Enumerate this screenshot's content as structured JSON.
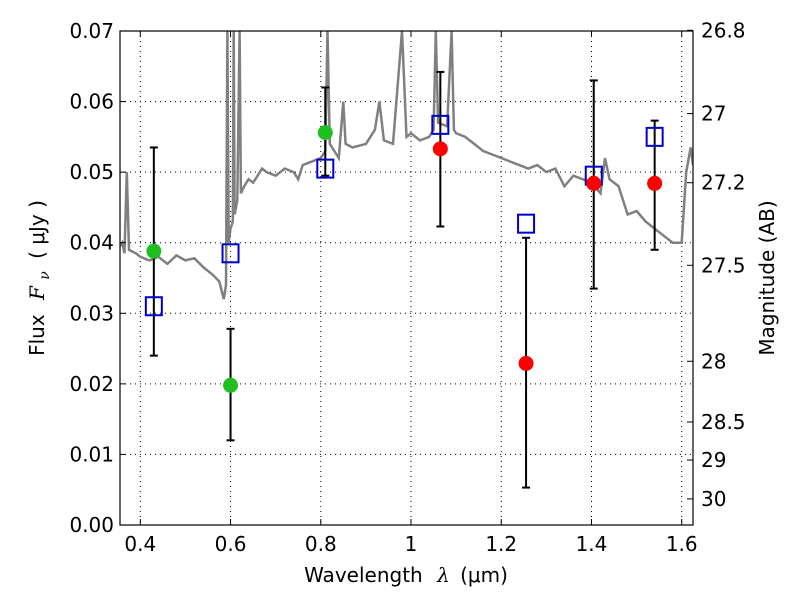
{
  "chart_data": {
    "type": "scatter",
    "title": "",
    "xlabel_prefix": "Wavelength",
    "xlabel_symbol": "λ",
    "xlabel_unit": "(μm)",
    "ylabel_prefix": "Flux",
    "ylabel_symbol": "F",
    "ylabel_subscript": "ν",
    "ylabel_unit": "( μJy )",
    "y2label": "Magnitude (AB)",
    "xlim": [
      0.355,
      1.625
    ],
    "ylim": [
      0.0,
      0.07
    ],
    "xticks": [
      0.4,
      0.6,
      0.8,
      1.0,
      1.2,
      1.4,
      1.6
    ],
    "xtick_labels": [
      "0.4",
      "0.6",
      "0.8",
      "1",
      "1.2",
      "1.4",
      "1.6"
    ],
    "yticks": [
      0.0,
      0.01,
      0.02,
      0.03,
      0.04,
      0.05,
      0.06,
      0.07
    ],
    "ytick_labels": [
      "0.00",
      "0.01",
      "0.02",
      "0.03",
      "0.04",
      "0.05",
      "0.06",
      "0.07"
    ],
    "y2ticks": [
      {
        "label": "26.8",
        "flux": 0.0701
      },
      {
        "label": "27",
        "flux": 0.0583
      },
      {
        "label": "27.2",
        "flux": 0.0485
      },
      {
        "label": "27.5",
        "flux": 0.0368
      },
      {
        "label": "28",
        "flux": 0.0232
      },
      {
        "label": "28.5",
        "flux": 0.0146
      },
      {
        "label": "29",
        "flux": 0.0092
      },
      {
        "label": "30",
        "flux": 0.0037
      }
    ],
    "grid": true,
    "colors": {
      "spectrum": "#808080",
      "green": "#1fbf1f",
      "red": "#ff0000",
      "model_box": "#0000cc",
      "errorbar": "#000000"
    },
    "spectrum": [
      [
        0.355,
        0.0395
      ],
      [
        0.36,
        0.04
      ],
      [
        0.365,
        0.0385
      ],
      [
        0.37,
        0.05
      ],
      [
        0.372,
        0.0455
      ],
      [
        0.375,
        0.039
      ],
      [
        0.39,
        0.0385
      ],
      [
        0.4,
        0.038
      ],
      [
        0.42,
        0.0375
      ],
      [
        0.44,
        0.038
      ],
      [
        0.46,
        0.037
      ],
      [
        0.48,
        0.0382
      ],
      [
        0.5,
        0.0375
      ],
      [
        0.52,
        0.0378
      ],
      [
        0.54,
        0.0365
      ],
      [
        0.56,
        0.0355
      ],
      [
        0.575,
        0.0345
      ],
      [
        0.585,
        0.032
      ],
      [
        0.59,
        0.034
      ],
      [
        0.593,
        0.07
      ],
      [
        0.596,
        0.04
      ],
      [
        0.6,
        0.042
      ],
      [
        0.605,
        0.043
      ],
      [
        0.607,
        0.07
      ],
      [
        0.609,
        0.044
      ],
      [
        0.615,
        0.046
      ],
      [
        0.62,
        0.07
      ],
      [
        0.623,
        0.047
      ],
      [
        0.63,
        0.048
      ],
      [
        0.64,
        0.049
      ],
      [
        0.65,
        0.0485
      ],
      [
        0.66,
        0.0495
      ],
      [
        0.67,
        0.0505
      ],
      [
        0.68,
        0.05
      ],
      [
        0.7,
        0.0495
      ],
      [
        0.72,
        0.0505
      ],
      [
        0.74,
        0.05
      ],
      [
        0.75,
        0.049
      ],
      [
        0.76,
        0.051
      ],
      [
        0.78,
        0.0515
      ],
      [
        0.8,
        0.052
      ],
      [
        0.81,
        0.053
      ],
      [
        0.815,
        0.07
      ],
      [
        0.82,
        0.054
      ],
      [
        0.83,
        0.053
      ],
      [
        0.84,
        0.052
      ],
      [
        0.85,
        0.06
      ],
      [
        0.855,
        0.054
      ],
      [
        0.87,
        0.0535
      ],
      [
        0.9,
        0.054
      ],
      [
        0.92,
        0.056
      ],
      [
        0.93,
        0.06
      ],
      [
        0.94,
        0.0545
      ],
      [
        0.96,
        0.054
      ],
      [
        0.98,
        0.07
      ],
      [
        0.99,
        0.055
      ],
      [
        1.0,
        0.0555
      ],
      [
        1.02,
        0.0545
      ],
      [
        1.04,
        0.055
      ],
      [
        1.05,
        0.056
      ],
      [
        1.055,
        0.07
      ],
      [
        1.06,
        0.057
      ],
      [
        1.08,
        0.0565
      ],
      [
        1.09,
        0.07
      ],
      [
        1.095,
        0.056
      ],
      [
        1.1,
        0.0555
      ],
      [
        1.12,
        0.055
      ],
      [
        1.14,
        0.054
      ],
      [
        1.16,
        0.053
      ],
      [
        1.18,
        0.0525
      ],
      [
        1.2,
        0.052
      ],
      [
        1.22,
        0.0515
      ],
      [
        1.24,
        0.051
      ],
      [
        1.26,
        0.0505
      ],
      [
        1.28,
        0.051
      ],
      [
        1.3,
        0.05
      ],
      [
        1.32,
        0.0505
      ],
      [
        1.34,
        0.048
      ],
      [
        1.36,
        0.0495
      ],
      [
        1.38,
        0.049
      ],
      [
        1.4,
        0.0485
      ],
      [
        1.42,
        0.047
      ],
      [
        1.43,
        0.052
      ],
      [
        1.44,
        0.049
      ],
      [
        1.46,
        0.048
      ],
      [
        1.48,
        0.044
      ],
      [
        1.5,
        0.0445
      ],
      [
        1.52,
        0.043
      ],
      [
        1.54,
        0.042
      ],
      [
        1.56,
        0.041
      ],
      [
        1.58,
        0.04
      ],
      [
        1.6,
        0.04
      ],
      [
        1.61,
        0.05
      ],
      [
        1.62,
        0.0535
      ],
      [
        1.625,
        0.051
      ]
    ],
    "points": [
      {
        "x": 0.43,
        "y": 0.0388,
        "err_low": 0.024,
        "err_high": 0.0535,
        "color": "green",
        "model": 0.031
      },
      {
        "x": 0.6,
        "y": 0.0198,
        "err_low": 0.012,
        "err_high": 0.0278,
        "color": "green",
        "model": 0.0385
      },
      {
        "x": 0.81,
        "y": 0.0556,
        "err_low": 0.0495,
        "err_high": 0.062,
        "color": "green",
        "model": 0.0505
      },
      {
        "x": 1.065,
        "y": 0.0533,
        "err_low": 0.0423,
        "err_high": 0.0642,
        "color": "red",
        "model": 0.0567
      },
      {
        "x": 1.255,
        "y": 0.0229,
        "err_low": 0.0053,
        "err_high": 0.0407,
        "color": "red",
        "model": 0.0427
      },
      {
        "x": 1.405,
        "y": 0.0484,
        "err_low": 0.0335,
        "err_high": 0.063,
        "color": "red",
        "model": 0.0495
      },
      {
        "x": 1.54,
        "y": 0.0484,
        "err_low": 0.039,
        "err_high": 0.0573,
        "color": "red",
        "model": 0.055
      }
    ]
  }
}
